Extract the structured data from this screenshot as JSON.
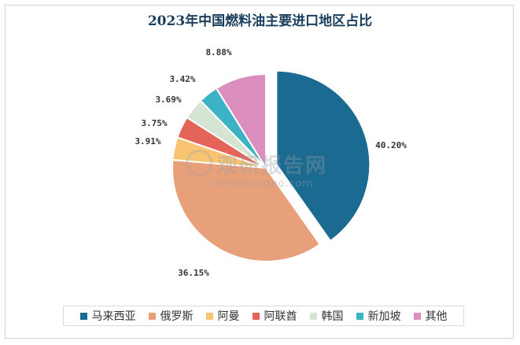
{
  "chart_data": {
    "type": "pie",
    "title": "2023年中国燃料油主要进口地区占比",
    "categories": [
      "马来西亚",
      "俄罗斯",
      "阿曼",
      "阿联酋",
      "韩国",
      "新加坡",
      "其他"
    ],
    "values": [
      40.2,
      36.15,
      3.91,
      3.75,
      3.69,
      3.42,
      8.88
    ],
    "labels": [
      "40.20%",
      "36.15%",
      "3.91%",
      "3.75%",
      "3.69%",
      "3.42%",
      "8.88%"
    ],
    "colors": [
      "#1b6a91",
      "#e8a07b",
      "#f8c471",
      "#e4645a",
      "#d5e4d3",
      "#3cb3c4",
      "#dc8fbf"
    ],
    "exploded": "马来西亚",
    "legend_position": "bottom"
  },
  "watermark": {
    "text_cn": "观研报告网",
    "text_en": "chinabaogao.com"
  }
}
